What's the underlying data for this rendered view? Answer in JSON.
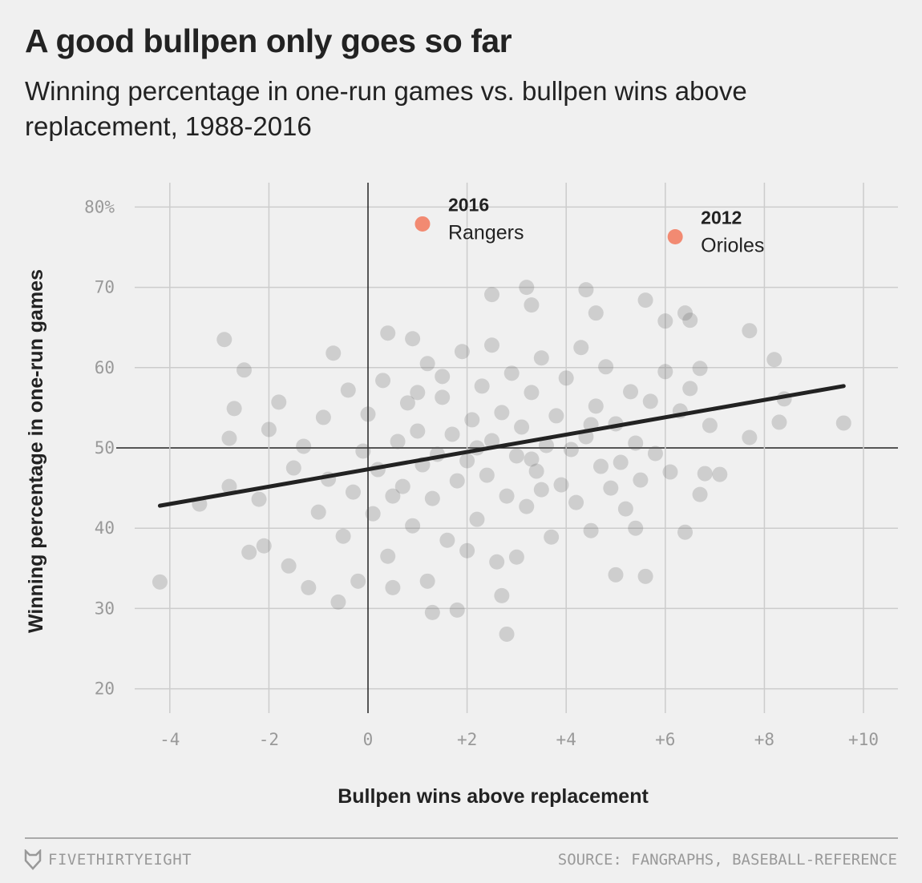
{
  "title": "A good bullpen only goes so far",
  "subtitle": "Winning percentage in one-run games vs. bullpen wins above replacement, 1988-2016",
  "footer": {
    "brand": "FIVETHIRTYEIGHT",
    "source": "SOURCE: FANGRAPHS, BASEBALL-REFERENCE"
  },
  "chart_data": {
    "type": "scatter",
    "xlabel": "Bullpen wins above replacement",
    "ylabel": "Winning percentage in one-run games",
    "xlim": [
      -4.8,
      10.7
    ],
    "ylim": [
      17,
      83
    ],
    "grid": true,
    "x_ticks": [
      -4,
      -2,
      0,
      2,
      4,
      6,
      8,
      10
    ],
    "x_tick_labels": [
      "-4",
      "-2",
      "0",
      "+2",
      "+4",
      "+6",
      "+8",
      "+10"
    ],
    "y_ticks": [
      20,
      30,
      40,
      50,
      60,
      70,
      80
    ],
    "y_tick_labels": [
      "20",
      "30",
      "40",
      "50",
      "60",
      "70",
      "80%"
    ],
    "point_color": "#555555",
    "highlight_color": "#f28a72",
    "trend_line": {
      "x": [
        -4.2,
        9.6
      ],
      "y": [
        42.8,
        57.7
      ]
    },
    "highlights": [
      {
        "x": 1.1,
        "y": 77.9,
        "year": "2016",
        "team": "Rangers"
      },
      {
        "x": 6.2,
        "y": 76.3,
        "year": "2012",
        "team": "Orioles"
      }
    ],
    "points": [
      [
        -4.2,
        33.3
      ],
      [
        -3.4,
        43.0
      ],
      [
        -2.9,
        63.5
      ],
      [
        -2.5,
        59.7
      ],
      [
        -2.7,
        54.9
      ],
      [
        -2.8,
        45.2
      ],
      [
        -2.8,
        51.2
      ],
      [
        -2.4,
        37.0
      ],
      [
        -2.1,
        37.8
      ],
      [
        -2.2,
        43.6
      ],
      [
        -2.0,
        52.3
      ],
      [
        -1.8,
        55.7
      ],
      [
        -1.6,
        35.3
      ],
      [
        -1.2,
        32.6
      ],
      [
        -0.6,
        30.8
      ],
      [
        -0.7,
        61.8
      ],
      [
        -0.2,
        33.4
      ],
      [
        0.4,
        64.3
      ],
      [
        0.9,
        63.6
      ],
      [
        0.5,
        32.6
      ],
      [
        1.2,
        33.4
      ],
      [
        1.3,
        29.5
      ],
      [
        1.8,
        29.8
      ],
      [
        2.8,
        26.8
      ],
      [
        2.7,
        31.6
      ],
      [
        3.2,
        70.0
      ],
      [
        2.5,
        69.1
      ],
      [
        3.3,
        67.8
      ],
      [
        4.4,
        69.7
      ],
      [
        4.6,
        66.8
      ],
      [
        5.6,
        68.4
      ],
      [
        6.4,
        66.8
      ],
      [
        6.0,
        65.8
      ],
      [
        7.7,
        64.6
      ],
      [
        8.2,
        61.0
      ],
      [
        8.4,
        56.1
      ],
      [
        8.3,
        53.2
      ],
      [
        7.7,
        51.3
      ],
      [
        9.6,
        53.1
      ],
      [
        7.1,
        46.7
      ],
      [
        6.8,
        46.8
      ],
      [
        6.7,
        44.2
      ],
      [
        6.4,
        39.5
      ],
      [
        5.6,
        34.0
      ],
      [
        5.0,
        34.2
      ],
      [
        5.4,
        40.0
      ],
      [
        6.9,
        52.8
      ],
      [
        6.7,
        59.9
      ],
      [
        6.5,
        65.9
      ],
      [
        -1.5,
        47.5
      ],
      [
        -1.3,
        50.2
      ],
      [
        -1.0,
        42.0
      ],
      [
        -0.9,
        53.8
      ],
      [
        -0.8,
        46.1
      ],
      [
        -0.5,
        39.0
      ],
      [
        -0.4,
        57.2
      ],
      [
        -0.3,
        44.5
      ],
      [
        -0.1,
        49.6
      ],
      [
        0.0,
        54.2
      ],
      [
        0.1,
        41.8
      ],
      [
        0.2,
        47.3
      ],
      [
        0.3,
        58.4
      ],
      [
        0.4,
        36.5
      ],
      [
        0.6,
        50.8
      ],
      [
        0.7,
        45.2
      ],
      [
        0.8,
        55.6
      ],
      [
        0.9,
        40.3
      ],
      [
        1.0,
        52.1
      ],
      [
        1.1,
        47.9
      ],
      [
        1.2,
        60.5
      ],
      [
        1.3,
        43.7
      ],
      [
        1.4,
        49.2
      ],
      [
        1.5,
        56.3
      ],
      [
        1.6,
        38.5
      ],
      [
        1.7,
        51.7
      ],
      [
        1.8,
        45.9
      ],
      [
        1.9,
        62.0
      ],
      [
        2.0,
        48.4
      ],
      [
        2.1,
        53.5
      ],
      [
        2.2,
        41.1
      ],
      [
        2.3,
        57.7
      ],
      [
        2.4,
        46.6
      ],
      [
        2.5,
        50.9
      ],
      [
        2.6,
        35.8
      ],
      [
        2.7,
        54.4
      ],
      [
        2.8,
        44.0
      ],
      [
        2.9,
        59.3
      ],
      [
        3.0,
        49.0
      ],
      [
        3.1,
        52.6
      ],
      [
        3.2,
        42.7
      ],
      [
        3.3,
        56.9
      ],
      [
        3.4,
        47.1
      ],
      [
        3.5,
        61.2
      ],
      [
        3.6,
        50.3
      ],
      [
        3.7,
        38.9
      ],
      [
        3.8,
        54.0
      ],
      [
        3.9,
        45.4
      ],
      [
        4.0,
        58.7
      ],
      [
        4.1,
        49.8
      ],
      [
        4.2,
        43.2
      ],
      [
        4.3,
        62.5
      ],
      [
        4.4,
        51.4
      ],
      [
        4.5,
        39.7
      ],
      [
        4.6,
        55.2
      ],
      [
        4.7,
        47.7
      ],
      [
        4.8,
        60.1
      ],
      [
        4.9,
        45.0
      ],
      [
        5.0,
        53.0
      ],
      [
        5.1,
        48.2
      ],
      [
        5.2,
        42.4
      ],
      [
        5.3,
        57.0
      ],
      [
        5.4,
        50.6
      ],
      [
        5.5,
        46.0
      ],
      [
        5.7,
        55.8
      ],
      [
        5.8,
        49.3
      ],
      [
        6.0,
        59.5
      ],
      [
        6.1,
        47.0
      ],
      [
        6.3,
        54.6
      ],
      [
        6.5,
        57.4
      ],
      [
        2.0,
        37.2
      ],
      [
        3.0,
        36.4
      ],
      [
        1.5,
        58.9
      ],
      [
        2.5,
        62.8
      ],
      [
        3.5,
        44.8
      ],
      [
        0.5,
        44.0
      ],
      [
        4.5,
        52.9
      ],
      [
        1.0,
        56.9
      ],
      [
        2.2,
        50.0
      ],
      [
        3.3,
        48.6
      ]
    ]
  }
}
